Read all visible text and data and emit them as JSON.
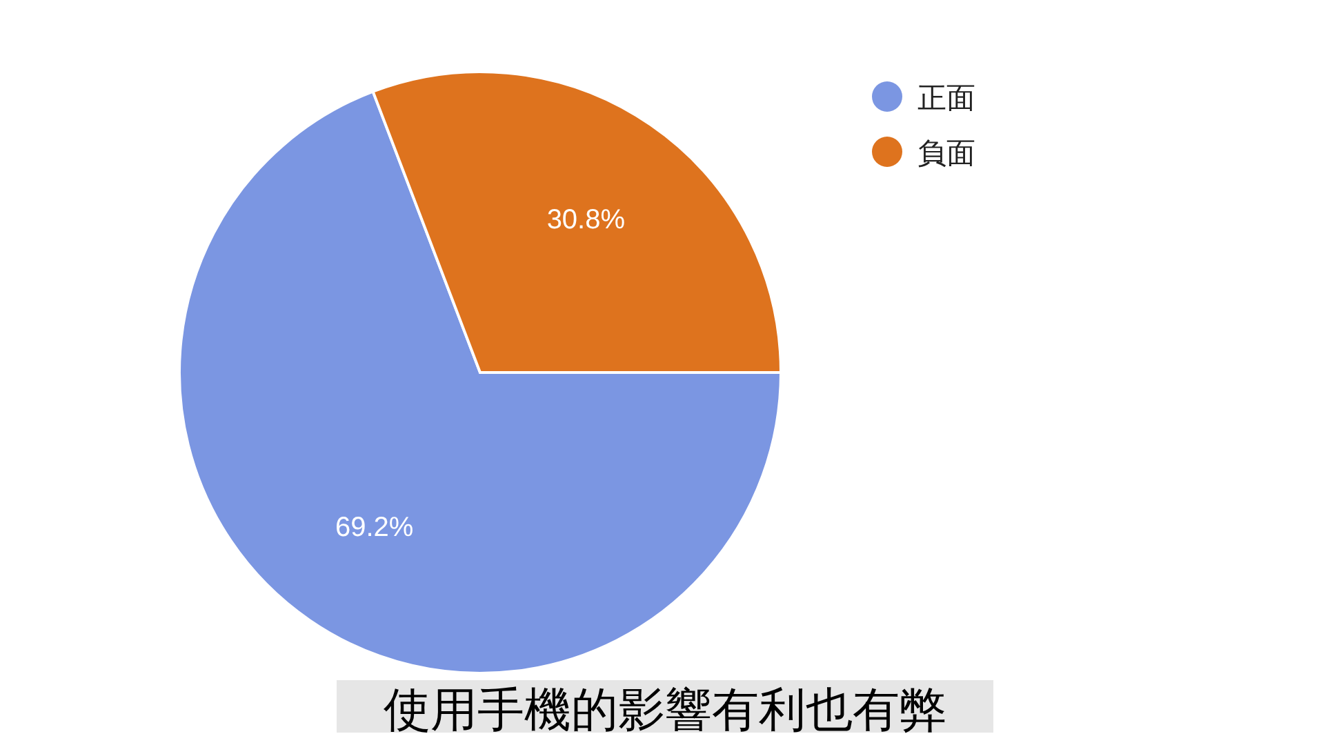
{
  "chart_data": {
    "type": "pie",
    "categories": [
      "正面",
      "負面"
    ],
    "values": [
      69.2,
      30.8
    ],
    "colors": [
      "#7b96e2",
      "#de731e"
    ],
    "value_labels": [
      "69.2%",
      "30.8%"
    ],
    "legend": "top right",
    "annotations": [
      "使用手機的影響有利也有弊"
    ]
  }
}
